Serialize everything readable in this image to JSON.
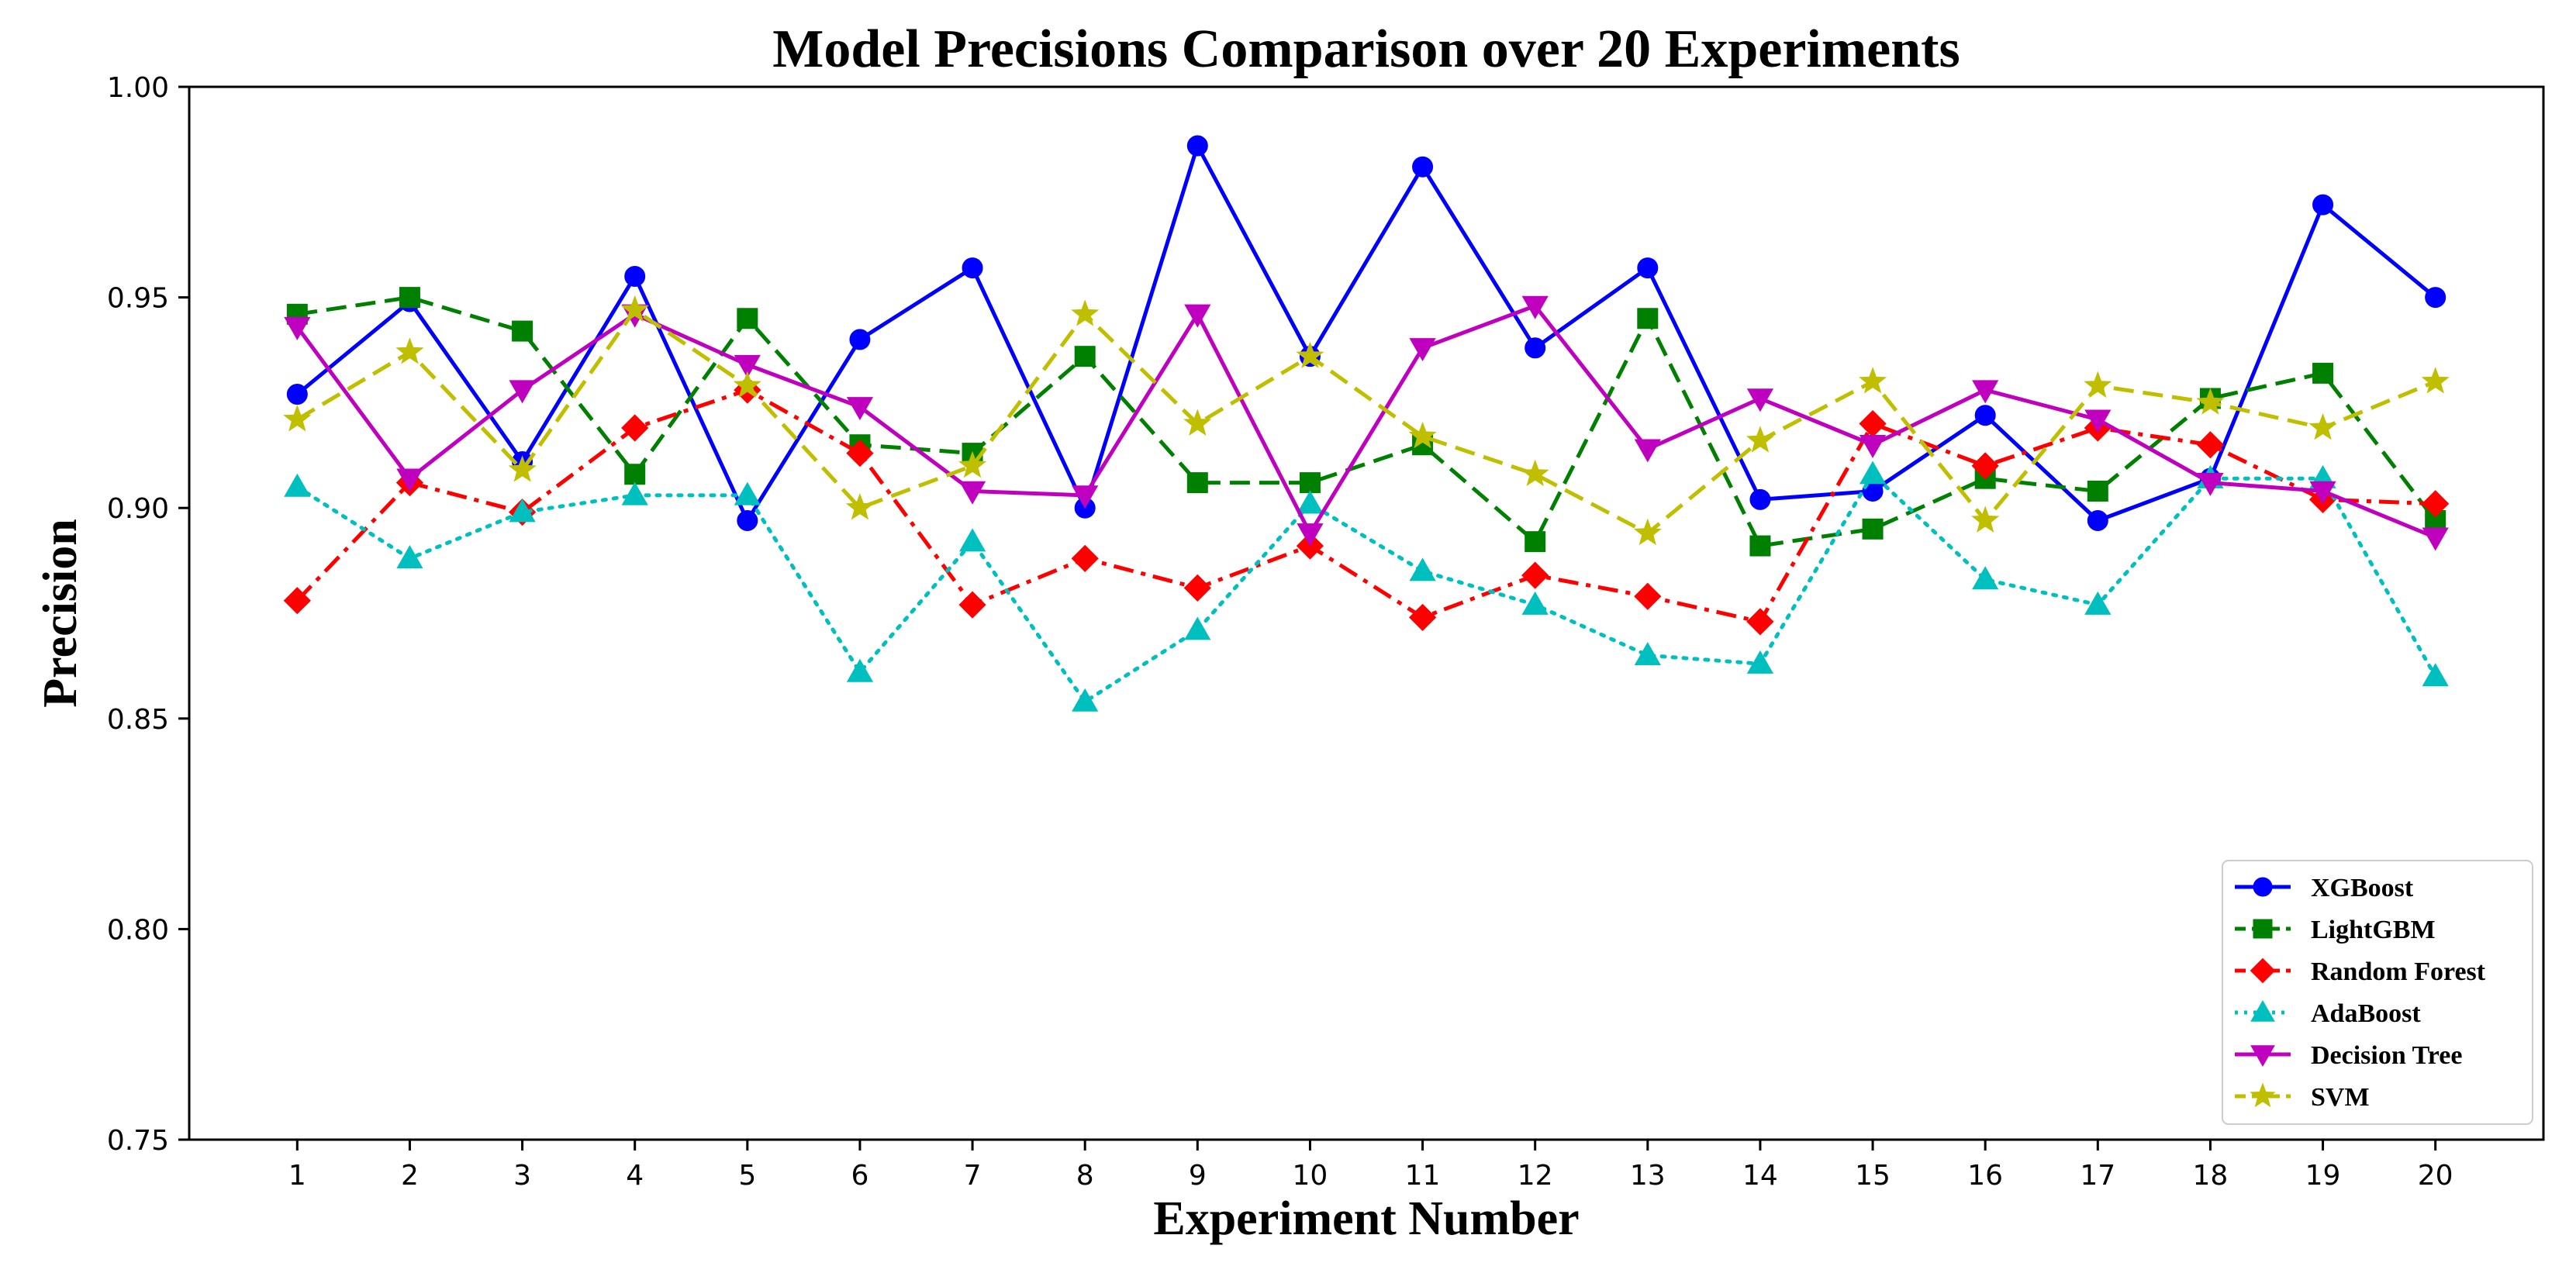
{
  "chart_data": {
    "type": "line",
    "title": "Model Precisions Comparison over 20 Experiments",
    "xlabel": "Experiment Number",
    "ylabel": "Precision",
    "x": [
      1,
      2,
      3,
      4,
      5,
      6,
      7,
      8,
      9,
      10,
      11,
      12,
      13,
      14,
      15,
      16,
      17,
      18,
      19,
      20
    ],
    "x_tick_labels": [
      "1",
      "2",
      "3",
      "4",
      "5",
      "6",
      "7",
      "8",
      "9",
      "10",
      "11",
      "12",
      "13",
      "14",
      "15",
      "16",
      "17",
      "18",
      "19",
      "20"
    ],
    "xlim": [
      0.04,
      20.96
    ],
    "ylim": [
      0.75,
      1.0
    ],
    "y_ticks": [
      0.75,
      0.8,
      0.85,
      0.9,
      0.95,
      1.0
    ],
    "y_tick_labels": [
      "0.75",
      "0.80",
      "0.85",
      "0.90",
      "0.95",
      "1.00"
    ],
    "grid": false,
    "legend_position": "lower-right",
    "series": [
      {
        "name": "XGBoost",
        "color": "#0000ff",
        "marker": "circle",
        "linestyle": "solid",
        "values": [
          0.927,
          0.949,
          0.911,
          0.955,
          0.897,
          0.94,
          0.957,
          0.9,
          0.986,
          0.936,
          0.981,
          0.938,
          0.957,
          0.902,
          0.904,
          0.922,
          0.897,
          0.907,
          0.972,
          0.95
        ]
      },
      {
        "name": "LightGBM",
        "color": "#008000",
        "marker": "square",
        "linestyle": "dashed",
        "values": [
          0.946,
          0.95,
          0.942,
          0.908,
          0.945,
          0.915,
          0.913,
          0.936,
          0.906,
          0.906,
          0.915,
          0.892,
          0.945,
          0.891,
          0.895,
          0.907,
          0.904,
          0.926,
          0.932,
          0.897
        ]
      },
      {
        "name": "Random Forest",
        "color": "#ff0000",
        "marker": "diamond",
        "linestyle": "dashdot",
        "values": [
          0.878,
          0.906,
          0.899,
          0.919,
          0.928,
          0.913,
          0.877,
          0.888,
          0.881,
          0.891,
          0.874,
          0.884,
          0.879,
          0.873,
          0.92,
          0.91,
          0.919,
          0.915,
          0.902,
          0.901
        ]
      },
      {
        "name": "AdaBoost",
        "color": "#00bfbf",
        "marker": "triangle-up",
        "linestyle": "dotted",
        "values": [
          0.905,
          0.888,
          0.899,
          0.903,
          0.903,
          0.861,
          0.892,
          0.854,
          0.871,
          0.901,
          0.885,
          0.877,
          0.865,
          0.863,
          0.908,
          0.883,
          0.877,
          0.907,
          0.907,
          0.86
        ]
      },
      {
        "name": "Decision Tree",
        "color": "#bf00bf",
        "marker": "triangle-down",
        "linestyle": "solid",
        "values": [
          0.943,
          0.907,
          0.928,
          0.946,
          0.934,
          0.924,
          0.904,
          0.903,
          0.946,
          0.894,
          0.938,
          0.948,
          0.914,
          0.926,
          0.915,
          0.928,
          0.921,
          0.906,
          0.904,
          0.893
        ]
      },
      {
        "name": "SVM",
        "color": "#bfbf00",
        "marker": "star",
        "linestyle": "dashed",
        "values": [
          0.921,
          0.937,
          0.909,
          0.947,
          0.929,
          0.9,
          0.91,
          0.946,
          0.92,
          0.936,
          0.917,
          0.908,
          0.894,
          0.916,
          0.93,
          0.897,
          0.929,
          0.925,
          0.919,
          0.93
        ]
      }
    ]
  }
}
